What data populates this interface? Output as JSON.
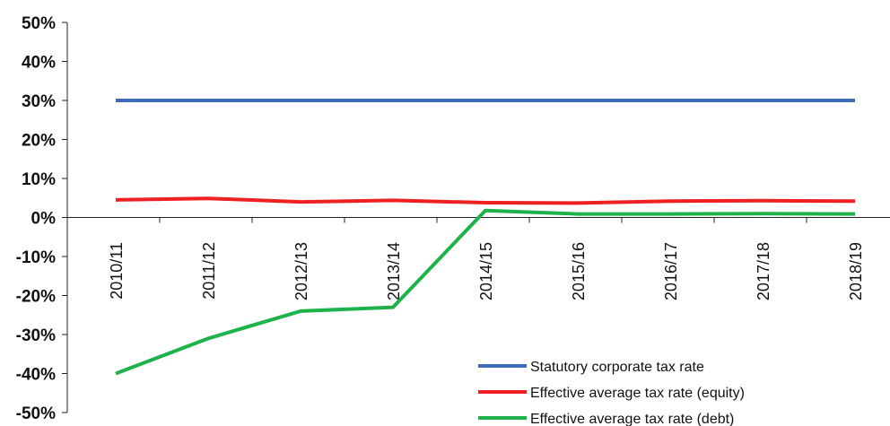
{
  "chart_data": {
    "type": "line",
    "categories": [
      "2010/11",
      "2011/12",
      "2012/13",
      "2013/14",
      "2014/15",
      "2015/16",
      "2016/17",
      "2017/18",
      "2018/19"
    ],
    "series": [
      {
        "name": "Statutory corporate tax rate",
        "color": "#3e6db5",
        "values": [
          30,
          30,
          30,
          30,
          30,
          30,
          30,
          30,
          30
        ]
      },
      {
        "name": "Effective average tax rate (equity)",
        "color": "#ee2022",
        "values": [
          4.5,
          4.9,
          4.0,
          4.4,
          3.8,
          3.7,
          4.2,
          4.3,
          4.2
        ]
      },
      {
        "name": "Effective average tax rate (debt)",
        "color": "#1db34a",
        "values": [
          -40,
          -31,
          -24,
          -23,
          1.8,
          0.9,
          0.9,
          1.0,
          0.9
        ]
      }
    ],
    "title": "",
    "xlabel": "",
    "ylabel": "",
    "ylim": [
      -50,
      50
    ],
    "y_ticks": [
      "50%",
      "40%",
      "30%",
      "20%",
      "10%",
      "0%",
      "-10%",
      "-20%",
      "-30%",
      "-40%",
      "-50%"
    ],
    "grid": false,
    "legend_position": "bottom-right"
  }
}
